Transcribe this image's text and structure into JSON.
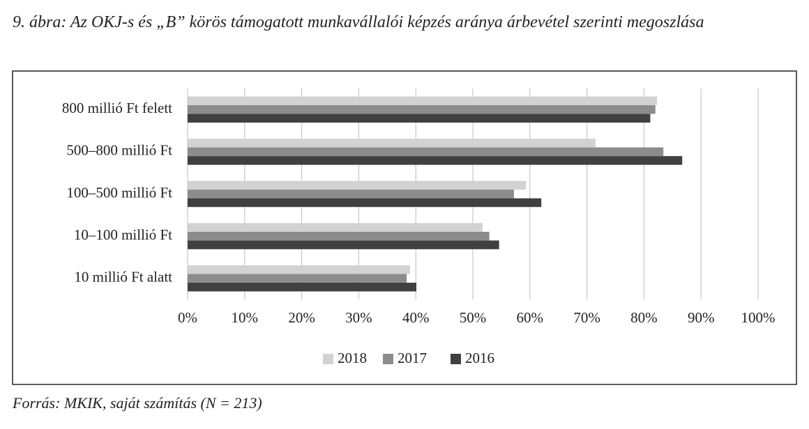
{
  "chart_data": {
    "type": "hbar",
    "title": "9. ábra: Az OKJ-s és „B” körös támogatott munkavállalói képzés aránya árbevétel szerinti megoszlása",
    "source": "Forrás: MKIK, saját számítás (N = 213)",
    "categories": [
      "800 millió Ft felett",
      "500–800 millió Ft",
      "100–500 millió Ft",
      "10–100 millió Ft",
      "10 millió Ft alatt"
    ],
    "series": [
      {
        "name": "2018",
        "color": "#d2d2d2",
        "values": [
          82.3,
          71.5,
          59.3,
          51.7,
          39.0
        ]
      },
      {
        "name": "2017",
        "color": "#8c8c8c",
        "values": [
          82.0,
          83.4,
          57.2,
          52.9,
          38.4
        ]
      },
      {
        "name": "2016",
        "color": "#404040",
        "values": [
          81.1,
          86.7,
          62.0,
          54.6,
          40.1
        ]
      }
    ],
    "xlim": [
      0,
      100
    ],
    "xticks": [
      {
        "value": 0,
        "label": "0%"
      },
      {
        "value": 10,
        "label": "10%"
      },
      {
        "value": 20,
        "label": "20%"
      },
      {
        "value": 30,
        "label": "30%"
      },
      {
        "value": 40,
        "label": "40%"
      },
      {
        "value": 50,
        "label": "50%"
      },
      {
        "value": 60,
        "label": "60%"
      },
      {
        "value": 70,
        "label": "70%"
      },
      {
        "value": 80,
        "label": "80%"
      },
      {
        "value": 90,
        "label": "90%"
      },
      {
        "value": 100,
        "label": "100%"
      }
    ],
    "grid": true,
    "legend": "bottom"
  }
}
